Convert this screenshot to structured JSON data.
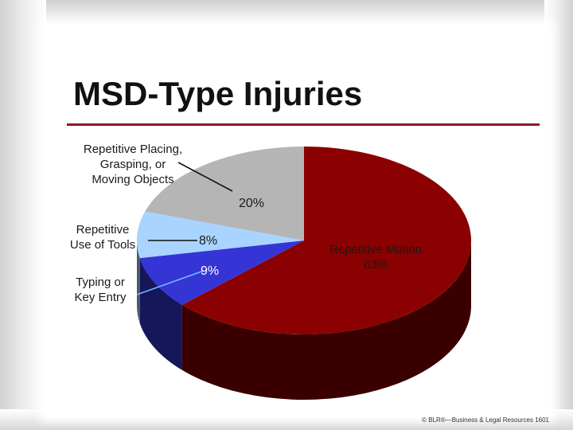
{
  "slide": {
    "title": "MSD-Type Injuries",
    "footer": "© BLR®—Business & Legal Resources 1601"
  },
  "chart_data": {
    "type": "pie",
    "title": "",
    "slices": [
      {
        "label": "Repetitive Motion",
        "value": 63,
        "value_label": "63%",
        "color": "#8b0000"
      },
      {
        "label": "Typing or Key Entry",
        "value": 9,
        "value_label": "9%",
        "color": "#3535d6"
      },
      {
        "label": "Repetitive Use of Tools",
        "value": 8,
        "value_label": "8%",
        "color": "#a8d4ff"
      },
      {
        "label": "Repetitive Placing, Grasping, or Moving Objects",
        "value": 20,
        "value_label": "20%",
        "color": "#b5b5b5"
      }
    ],
    "label_lines": {
      "placing": [
        "Repetitive Placing,",
        "Grasping, or",
        "Moving Objects"
      ],
      "tools": [
        "Repetitive",
        "Use of Tools"
      ],
      "typing": [
        "Typing or",
        "Key Entry"
      ],
      "motion": [
        "Repetitive Motion"
      ]
    },
    "style": "3d"
  }
}
